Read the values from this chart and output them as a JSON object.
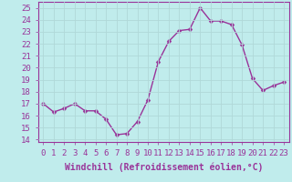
{
  "x": [
    0,
    1,
    2,
    3,
    4,
    5,
    6,
    7,
    8,
    9,
    10,
    11,
    12,
    13,
    14,
    15,
    16,
    17,
    18,
    19,
    20,
    21,
    22,
    23
  ],
  "y": [
    17.0,
    16.3,
    16.6,
    17.0,
    16.4,
    16.4,
    15.7,
    14.4,
    14.5,
    15.5,
    17.3,
    20.5,
    22.2,
    23.1,
    23.2,
    25.0,
    23.9,
    23.9,
    23.6,
    21.9,
    19.1,
    18.1,
    18.5,
    18.8
  ],
  "line_color": "#993399",
  "marker_color": "#993399",
  "background_color": "#c0ecec",
  "grid_color": "#b0d8d8",
  "xlabel": "Windchill (Refroidissement éolien,°C)",
  "ylabel_ticks": [
    14,
    15,
    16,
    17,
    18,
    19,
    20,
    21,
    22,
    23,
    24,
    25
  ],
  "xlim": [
    -0.5,
    23.5
  ],
  "ylim": [
    13.8,
    25.5
  ],
  "xticks": [
    0,
    1,
    2,
    3,
    4,
    5,
    6,
    7,
    8,
    9,
    10,
    11,
    12,
    13,
    14,
    15,
    16,
    17,
    18,
    19,
    20,
    21,
    22,
    23
  ],
  "xlabel_fontsize": 7.0,
  "tick_fontsize": 6.5,
  "line_width": 1.0,
  "marker_size": 2.5
}
